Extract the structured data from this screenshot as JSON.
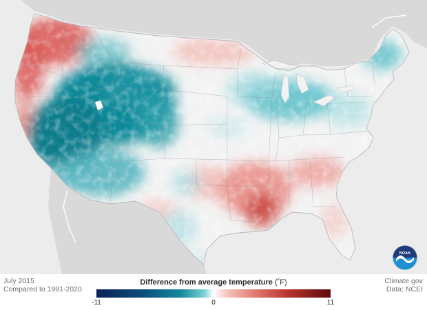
{
  "footer": {
    "left_line1": "July 2015",
    "left_line2": "Compared to 1991-2020",
    "right_line1": "Climate.gov",
    "right_line2": "Data: NCEI"
  },
  "legend": {
    "title": "Difference from average temperature",
    "unit": "(˚F)",
    "min_label": "-11",
    "mid_label": "0",
    "max_label": "11",
    "colors": [
      "#0c2156",
      "#118a99",
      "#ffffff",
      "#e0786d",
      "#5e0a0a"
    ]
  },
  "logo": {
    "text": "NOAA",
    "icon": "noaa-logo-icon"
  }
}
